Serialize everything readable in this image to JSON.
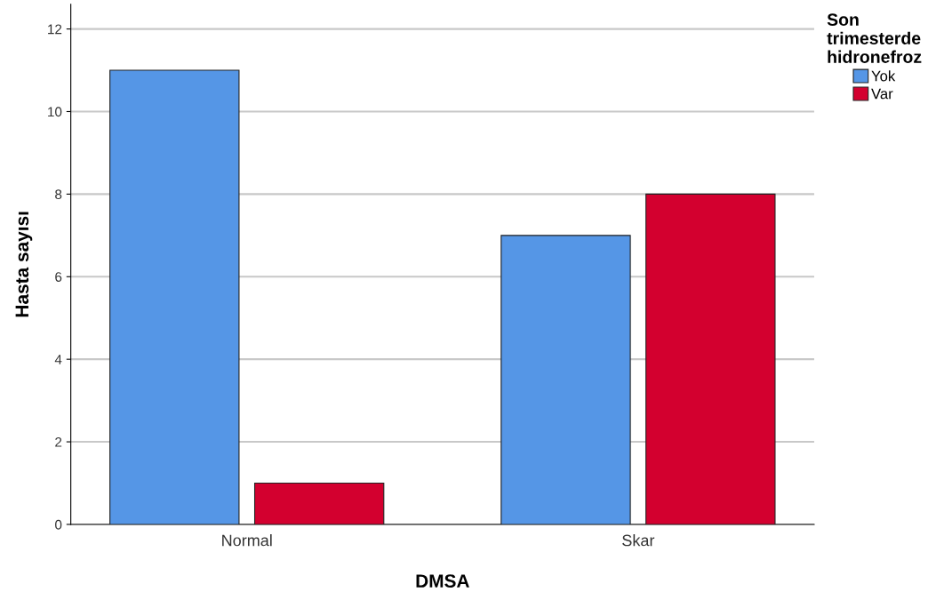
{
  "chart_data": {
    "type": "bar",
    "xlabel": "DMSA",
    "ylabel": "Hasta sayısı",
    "legend_title": "Son\ntrimesterde\nhidronefroz",
    "categories": [
      "Normal",
      "Skar"
    ],
    "series": [
      {
        "name": "Yok",
        "color": "#5596e6",
        "values": [
          11,
          7
        ]
      },
      {
        "name": "Var",
        "color": "#d3002f",
        "values": [
          1,
          8
        ]
      }
    ],
    "ylim": [
      0,
      12.6
    ],
    "yticks": [
      0,
      2,
      4,
      6,
      8,
      10,
      12
    ],
    "grid": "y",
    "legend": "top right"
  }
}
